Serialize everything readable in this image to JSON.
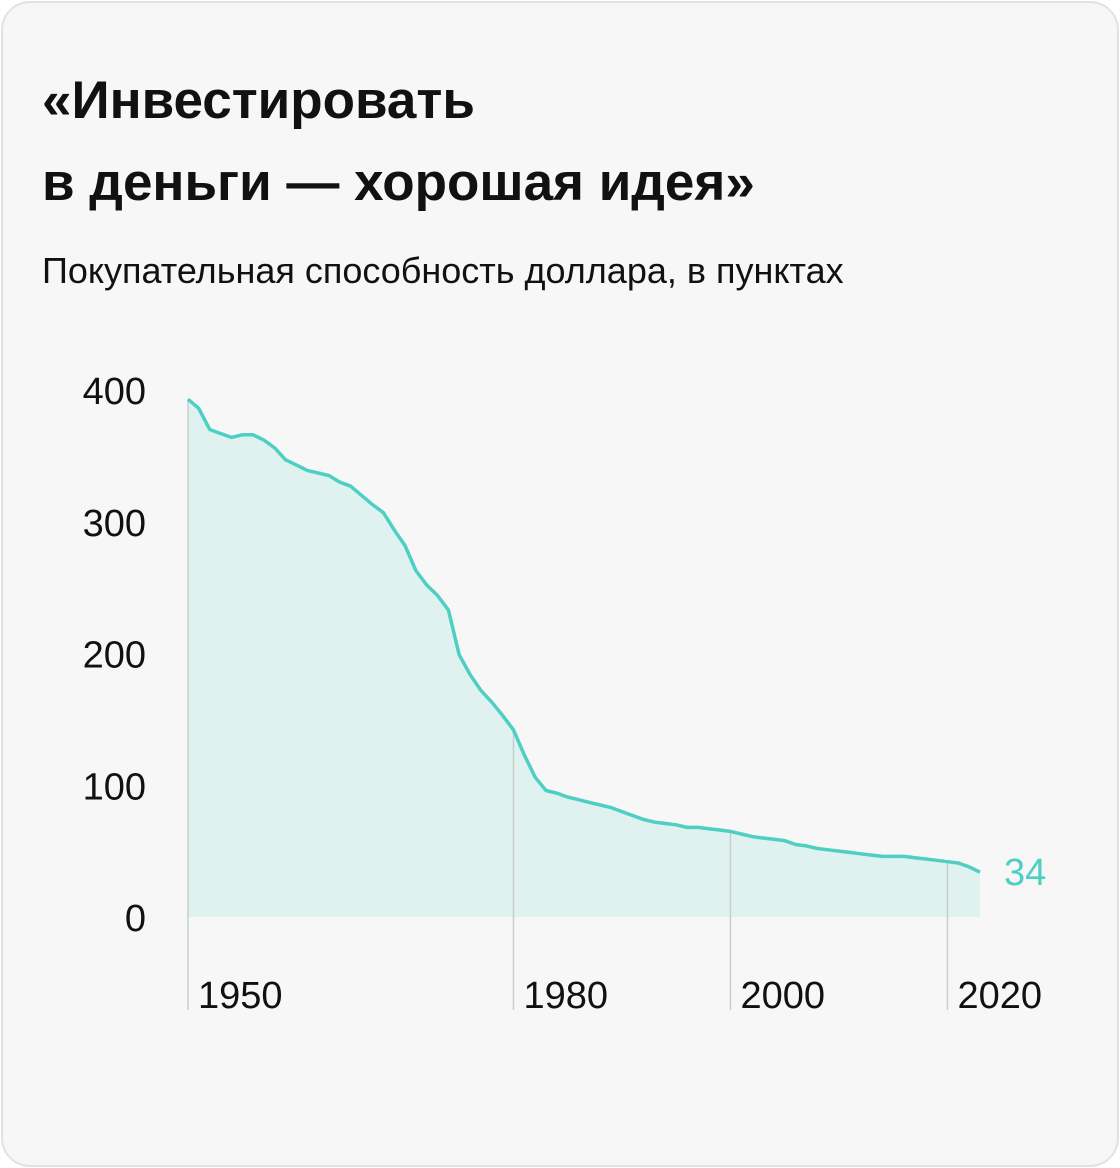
{
  "chart_data": {
    "type": "area",
    "title": [
      "«Инвестировать",
      "в деньги — хорошая идея»"
    ],
    "subtitle": "Покупательная способность доллара, в пунктах",
    "x": [
      1950,
      1951,
      1952,
      1953,
      1954,
      1955,
      1956,
      1957,
      1958,
      1959,
      1960,
      1961,
      1962,
      1963,
      1964,
      1965,
      1966,
      1967,
      1968,
      1969,
      1970,
      1971,
      1972,
      1973,
      1974,
      1975,
      1976,
      1977,
      1978,
      1979,
      1980,
      1981,
      1982,
      1983,
      1984,
      1985,
      1986,
      1987,
      1988,
      1989,
      1990,
      1991,
      1992,
      1993,
      1994,
      1995,
      1996,
      1997,
      1998,
      1999,
      2000,
      2001,
      2002,
      2003,
      2004,
      2005,
      2006,
      2007,
      2008,
      2009,
      2010,
      2011,
      2012,
      2013,
      2014,
      2015,
      2016,
      2017,
      2018,
      2019,
      2020,
      2021,
      2022,
      2023
    ],
    "values": [
      393,
      386,
      370,
      367,
      364,
      366,
      366,
      362,
      356,
      347,
      343,
      339,
      337,
      335,
      330,
      327,
      320,
      313,
      307,
      294,
      282,
      263,
      252,
      244,
      233,
      199,
      184,
      172,
      163,
      153,
      142,
      123,
      106,
      96,
      94,
      91,
      89,
      87,
      85,
      83,
      80,
      77,
      74,
      72,
      71,
      70,
      68,
      68,
      67,
      66,
      65,
      63,
      61,
      60,
      59,
      58,
      55,
      54,
      52,
      51,
      50,
      49,
      48,
      47,
      46,
      46,
      46,
      45,
      44,
      43,
      42,
      41,
      38,
      34
    ],
    "color": "#4fcfc3",
    "area_color": "#dff2ef",
    "xlim": [
      1950,
      2023
    ],
    "xticks": [
      1950,
      1980,
      2000,
      2020
    ],
    "ylim": [
      0,
      400
    ],
    "yticks": [
      0,
      100,
      200,
      300,
      400
    ],
    "grid": false
  }
}
